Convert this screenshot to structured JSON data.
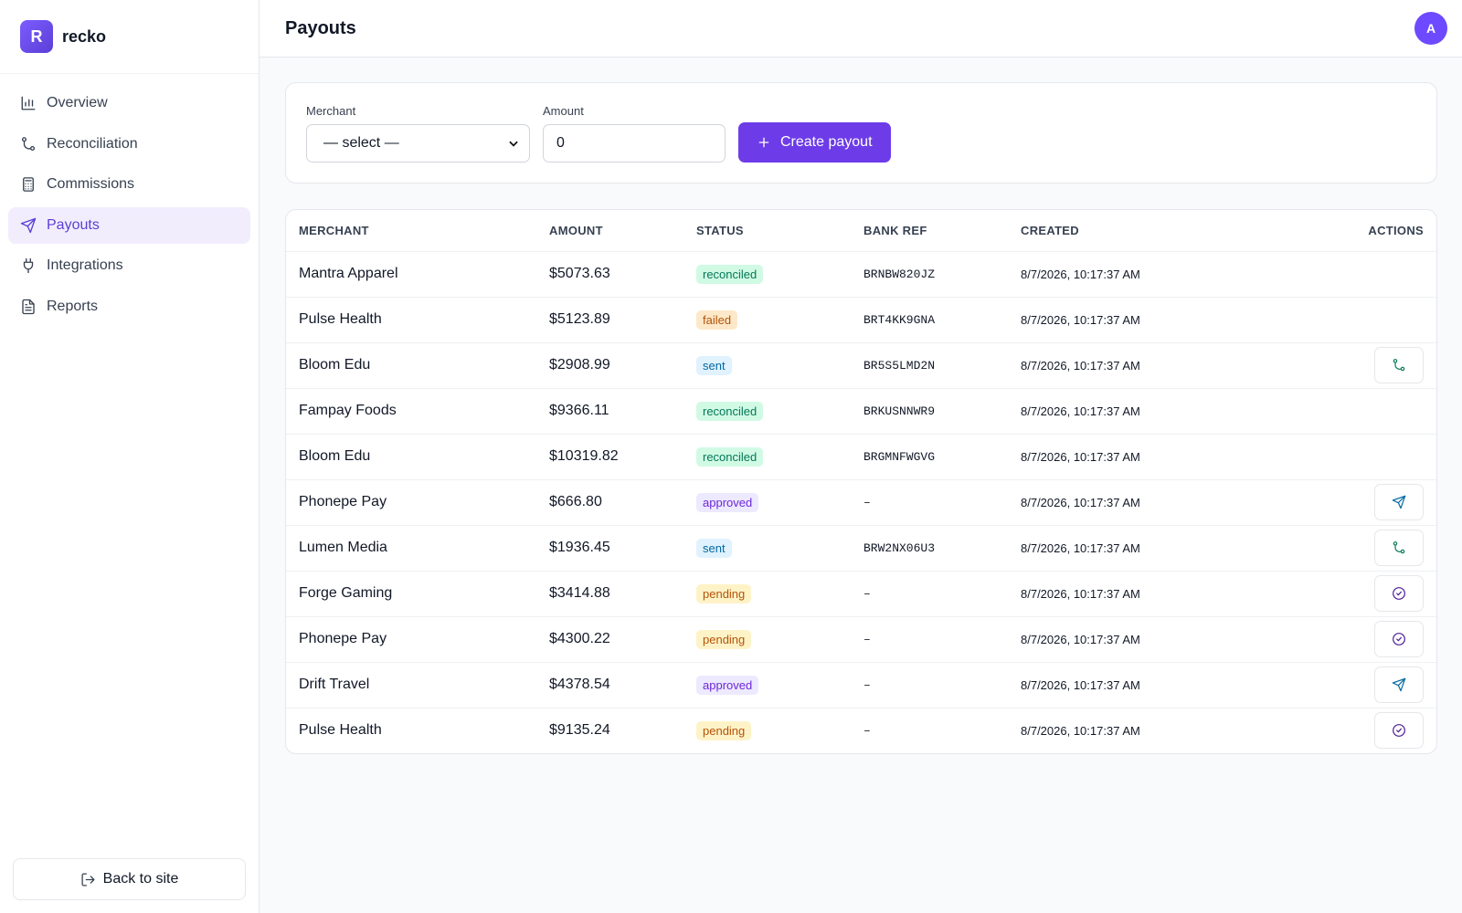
{
  "brand": {
    "logo": "R",
    "name": "recko"
  },
  "nav": [
    "Overview",
    "Reconciliation",
    "Commissions",
    "Payouts",
    "Integrations",
    "Reports"
  ],
  "footer": {
    "back": "Back to site"
  },
  "header": {
    "title": "Payouts",
    "avatar": "A"
  },
  "form": {
    "merchant_label": "Merchant",
    "merchant_placeholder": "— select —",
    "amount_label": "Amount",
    "amount_value": "0",
    "submit": "Create payout"
  },
  "table": {
    "columns": [
      "MERCHANT",
      "AMOUNT",
      "STATUS",
      "BANK REF",
      "CREATED",
      "ACTIONS"
    ],
    "rows": [
      [
        "Mantra Apparel",
        "$5073.63",
        "reconciled",
        "BRNBW820JZ",
        "8/7/2026, 10:17:37 AM"
      ],
      [
        "Pulse Health",
        "$5123.89",
        "failed",
        "BRT4KK9GNA",
        "8/7/2026, 10:17:37 AM"
      ],
      [
        "Bloom Edu",
        "$2908.99",
        "sent",
        "BR5S5LMD2N",
        "8/7/2026, 10:17:37 AM"
      ],
      [
        "Fampay Foods",
        "$9366.11",
        "reconciled",
        "BRKUSNNWR9",
        "8/7/2026, 10:17:37 AM"
      ],
      [
        "Bloom Edu",
        "$10319.82",
        "reconciled",
        "BRGMNFWGVG",
        "8/7/2026, 10:17:37 AM"
      ],
      [
        "Phonepe Pay",
        "$666.80",
        "approved",
        "–",
        "8/7/2026, 10:17:37 AM"
      ],
      [
        "Lumen Media",
        "$1936.45",
        "sent",
        "BRW2NX06U3",
        "8/7/2026, 10:17:37 AM"
      ],
      [
        "Forge Gaming",
        "$3414.88",
        "pending",
        "–",
        "8/7/2026, 10:17:37 AM"
      ],
      [
        "Phonepe Pay",
        "$4300.22",
        "pending",
        "–",
        "8/7/2026, 10:17:37 AM"
      ],
      [
        "Drift Travel",
        "$4378.54",
        "approved",
        "–",
        "8/7/2026, 10:17:37 AM"
      ],
      [
        "Pulse Health",
        "$9135.24",
        "pending",
        "–",
        "8/7/2026, 10:17:37 AM"
      ]
    ]
  }
}
